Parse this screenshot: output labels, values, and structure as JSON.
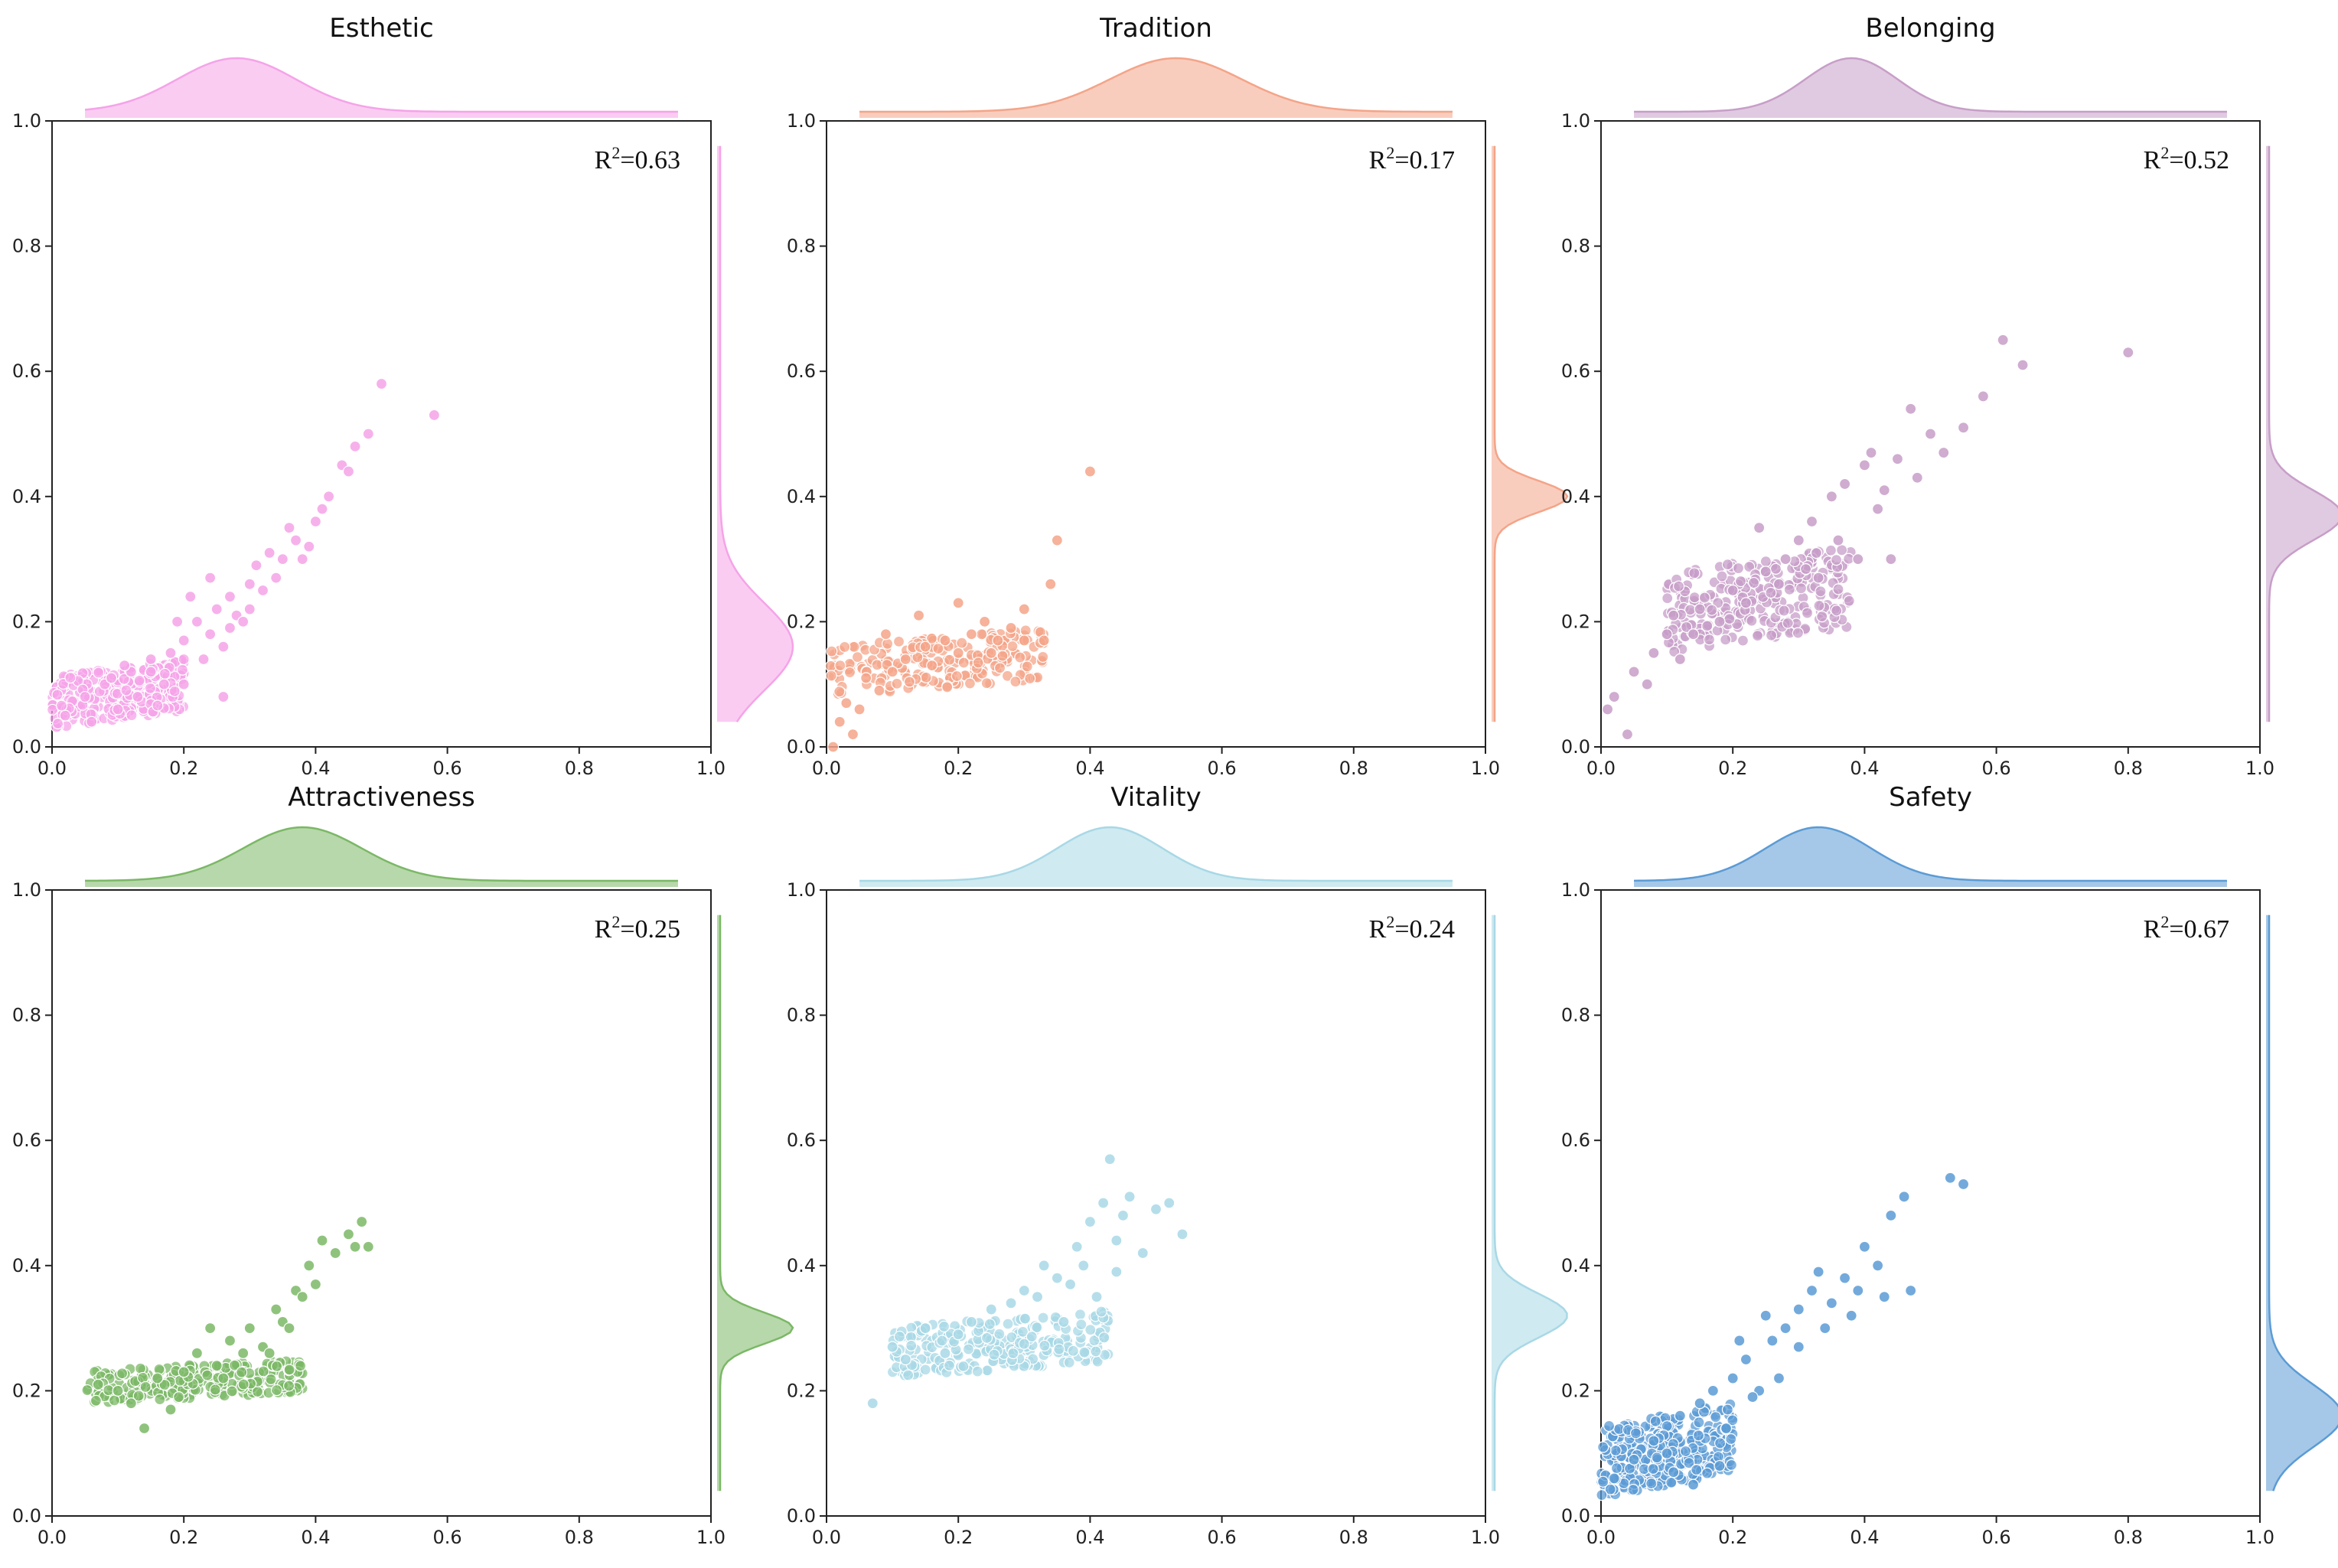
{
  "chart_data": [
    {
      "type": "scatter",
      "title": "Esthetic",
      "color": "#f5a3e8",
      "r2_label": "R²=0.63",
      "r2_base": "R",
      "r2_sup": "2",
      "r2_value": "=0.63",
      "xlim": [
        0,
        1
      ],
      "ylim": [
        0,
        1
      ],
      "xticks": [
        "0.0",
        "0.2",
        "0.4",
        "0.6",
        "0.8",
        "1.0"
      ],
      "yticks": [
        "0.0",
        "0.2",
        "0.4",
        "0.6",
        "0.8",
        "1.0"
      ],
      "x_density": {
        "peak": 0.28,
        "spread": 0.09
      },
      "y_density": {
        "peak": 0.16,
        "spread": 0.07
      },
      "cluster": {
        "x_range": [
          0.0,
          0.2
        ],
        "y_range": [
          0.03,
          0.14
        ],
        "count": 300
      },
      "points": [
        [
          0.02,
          0.05
        ],
        [
          0.05,
          0.08
        ],
        [
          0.08,
          0.1
        ],
        [
          0.1,
          0.06
        ],
        [
          0.12,
          0.12
        ],
        [
          0.15,
          0.14
        ],
        [
          0.18,
          0.15
        ],
        [
          0.2,
          0.17
        ],
        [
          0.22,
          0.2
        ],
        [
          0.24,
          0.18
        ],
        [
          0.25,
          0.22
        ],
        [
          0.27,
          0.24
        ],
        [
          0.28,
          0.21
        ],
        [
          0.3,
          0.26
        ],
        [
          0.32,
          0.25
        ],
        [
          0.35,
          0.3
        ],
        [
          0.37,
          0.33
        ],
        [
          0.38,
          0.3
        ],
        [
          0.4,
          0.36
        ],
        [
          0.42,
          0.4
        ],
        [
          0.44,
          0.45
        ],
        [
          0.46,
          0.48
        ],
        [
          0.48,
          0.5
        ],
        [
          0.5,
          0.58
        ],
        [
          0.58,
          0.53
        ],
        [
          0.2,
          0.1
        ],
        [
          0.23,
          0.14
        ],
        [
          0.26,
          0.16
        ],
        [
          0.29,
          0.2
        ],
        [
          0.31,
          0.29
        ],
        [
          0.33,
          0.31
        ],
        [
          0.36,
          0.35
        ],
        [
          0.41,
          0.38
        ],
        [
          0.45,
          0.44
        ],
        [
          0.15,
          0.12
        ],
        [
          0.17,
          0.1
        ],
        [
          0.13,
          0.08
        ],
        [
          0.21,
          0.24
        ],
        [
          0.24,
          0.27
        ],
        [
          0.19,
          0.2
        ],
        [
          0.11,
          0.13
        ],
        [
          0.06,
          0.04
        ],
        [
          0.09,
          0.11
        ],
        [
          0.27,
          0.19
        ],
        [
          0.34,
          0.27
        ],
        [
          0.39,
          0.32
        ],
        [
          0.3,
          0.22
        ],
        [
          0.26,
          0.08
        ]
      ]
    },
    {
      "type": "scatter",
      "title": "Tradition",
      "color": "#f4a488",
      "r2_label": "R²=0.17",
      "r2_base": "R",
      "r2_sup": "2",
      "r2_value": "=0.17",
      "xlim": [
        0,
        1
      ],
      "ylim": [
        0,
        1
      ],
      "xticks": [
        "0.0",
        "0.2",
        "0.4",
        "0.6",
        "0.8",
        "1.0"
      ],
      "yticks": [
        "0.0",
        "0.2",
        "0.4",
        "0.6",
        "0.8",
        "1.0"
      ],
      "x_density": {
        "peak": 0.53,
        "spread": 0.1
      },
      "y_density": {
        "peak": 0.4,
        "spread": 0.025
      },
      "cluster": {
        "x_range": [
          0.0,
          0.33
        ],
        "y_range": [
          0.08,
          0.19
        ],
        "count": 220
      },
      "points": [
        [
          0.01,
          0.0
        ],
        [
          0.02,
          0.04
        ],
        [
          0.03,
          0.07
        ],
        [
          0.05,
          0.06
        ],
        [
          0.08,
          0.09
        ],
        [
          0.1,
          0.12
        ],
        [
          0.12,
          0.14
        ],
        [
          0.15,
          0.16
        ],
        [
          0.18,
          0.17
        ],
        [
          0.2,
          0.15
        ],
        [
          0.22,
          0.18
        ],
        [
          0.24,
          0.2
        ],
        [
          0.26,
          0.17
        ],
        [
          0.28,
          0.19
        ],
        [
          0.3,
          0.17
        ],
        [
          0.33,
          0.17
        ],
        [
          0.3,
          0.22
        ],
        [
          0.34,
          0.26
        ],
        [
          0.35,
          0.33
        ],
        [
          0.4,
          0.44
        ],
        [
          0.2,
          0.23
        ],
        [
          0.14,
          0.21
        ],
        [
          0.06,
          0.11
        ],
        [
          0.09,
          0.18
        ],
        [
          0.16,
          0.13
        ],
        [
          0.25,
          0.15
        ],
        [
          0.04,
          0.02
        ]
      ]
    },
    {
      "type": "scatter",
      "title": "Belonging",
      "color": "#c79ec8",
      "r2_label": "R²=0.52",
      "r2_base": "R",
      "r2_sup": "2",
      "r2_value": "=0.52",
      "xlim": [
        0,
        1
      ],
      "ylim": [
        0,
        1
      ],
      "xticks": [
        "0.0",
        "0.2",
        "0.4",
        "0.6",
        "0.8",
        "1.0"
      ],
      "yticks": [
        "0.0",
        "0.2",
        "0.4",
        "0.6",
        "0.8",
        "1.0"
      ],
      "x_density": {
        "peak": 0.38,
        "spread": 0.07
      },
      "y_density": {
        "peak": 0.37,
        "spread": 0.04
      },
      "cluster": {
        "x_range": [
          0.1,
          0.38
        ],
        "y_range": [
          0.15,
          0.32
        ],
        "count": 280
      },
      "points": [
        [
          0.01,
          0.06
        ],
        [
          0.02,
          0.08
        ],
        [
          0.04,
          0.02
        ],
        [
          0.05,
          0.12
        ],
        [
          0.07,
          0.1
        ],
        [
          0.08,
          0.15
        ],
        [
          0.1,
          0.18
        ],
        [
          0.12,
          0.14
        ],
        [
          0.15,
          0.22
        ],
        [
          0.18,
          0.2
        ],
        [
          0.2,
          0.25
        ],
        [
          0.22,
          0.23
        ],
        [
          0.25,
          0.28
        ],
        [
          0.28,
          0.3
        ],
        [
          0.3,
          0.33
        ],
        [
          0.32,
          0.36
        ],
        [
          0.35,
          0.4
        ],
        [
          0.37,
          0.42
        ],
        [
          0.4,
          0.45
        ],
        [
          0.42,
          0.38
        ],
        [
          0.45,
          0.46
        ],
        [
          0.47,
          0.54
        ],
        [
          0.5,
          0.5
        ],
        [
          0.52,
          0.47
        ],
        [
          0.55,
          0.51
        ],
        [
          0.58,
          0.56
        ],
        [
          0.61,
          0.65
        ],
        [
          0.64,
          0.61
        ],
        [
          0.8,
          0.63
        ],
        [
          0.36,
          0.33
        ],
        [
          0.39,
          0.3
        ],
        [
          0.33,
          0.27
        ],
        [
          0.27,
          0.26
        ],
        [
          0.43,
          0.41
        ],
        [
          0.44,
          0.3
        ],
        [
          0.11,
          0.21
        ],
        [
          0.14,
          0.18
        ],
        [
          0.24,
          0.35
        ],
        [
          0.41,
          0.47
        ],
        [
          0.48,
          0.43
        ]
      ]
    },
    {
      "type": "scatter",
      "title": "Attractiveness",
      "color": "#7bb866",
      "r2_label": "R²=0.25",
      "r2_base": "R",
      "r2_sup": "2",
      "r2_value": "=0.25",
      "xlim": [
        0,
        1
      ],
      "ylim": [
        0,
        1
      ],
      "xticks": [
        "0.0",
        "0.2",
        "0.4",
        "0.6",
        "0.8",
        "1.0"
      ],
      "yticks": [
        "0.0",
        "0.2",
        "0.4",
        "0.6",
        "0.8",
        "1.0"
      ],
      "x_density": {
        "peak": 0.38,
        "spread": 0.09
      },
      "y_density": {
        "peak": 0.3,
        "spread": 0.025
      },
      "cluster": {
        "x_range": [
          0.05,
          0.38
        ],
        "y_range": [
          0.18,
          0.25
        ],
        "count": 260
      },
      "points": [
        [
          0.07,
          0.21
        ],
        [
          0.1,
          0.2
        ],
        [
          0.14,
          0.14
        ],
        [
          0.18,
          0.17
        ],
        [
          0.2,
          0.23
        ],
        [
          0.22,
          0.26
        ],
        [
          0.25,
          0.24
        ],
        [
          0.27,
          0.28
        ],
        [
          0.3,
          0.3
        ],
        [
          0.32,
          0.27
        ],
        [
          0.34,
          0.33
        ],
        [
          0.35,
          0.31
        ],
        [
          0.37,
          0.36
        ],
        [
          0.39,
          0.4
        ],
        [
          0.41,
          0.44
        ],
        [
          0.43,
          0.42
        ],
        [
          0.45,
          0.45
        ],
        [
          0.46,
          0.43
        ],
        [
          0.47,
          0.47
        ],
        [
          0.48,
          0.43
        ],
        [
          0.38,
          0.35
        ],
        [
          0.36,
          0.3
        ],
        [
          0.33,
          0.26
        ],
        [
          0.29,
          0.26
        ],
        [
          0.24,
          0.3
        ],
        [
          0.4,
          0.37
        ],
        [
          0.26,
          0.22
        ],
        [
          0.16,
          0.22
        ],
        [
          0.12,
          0.18
        ]
      ]
    },
    {
      "type": "scatter",
      "title": "Vitality",
      "color": "#a8d8e6",
      "r2_label": "R²=0.24",
      "r2_base": "R",
      "r2_sup": "2",
      "r2_value": "=0.24",
      "xlim": [
        0,
        1
      ],
      "ylim": [
        0,
        1
      ],
      "xticks": [
        "0.0",
        "0.2",
        "0.4",
        "0.6",
        "0.8",
        "1.0"
      ],
      "yticks": [
        "0.0",
        "0.2",
        "0.4",
        "0.6",
        "0.8",
        "1.0"
      ],
      "x_density": {
        "peak": 0.43,
        "spread": 0.08
      },
      "y_density": {
        "peak": 0.32,
        "spread": 0.035
      },
      "cluster": {
        "x_range": [
          0.1,
          0.43
        ],
        "y_range": [
          0.22,
          0.33
        ],
        "count": 260
      },
      "points": [
        [
          0.07,
          0.18
        ],
        [
          0.1,
          0.27
        ],
        [
          0.12,
          0.25
        ],
        [
          0.15,
          0.3
        ],
        [
          0.18,
          0.26
        ],
        [
          0.2,
          0.29
        ],
        [
          0.22,
          0.31
        ],
        [
          0.25,
          0.33
        ],
        [
          0.28,
          0.34
        ],
        [
          0.3,
          0.36
        ],
        [
          0.32,
          0.35
        ],
        [
          0.35,
          0.38
        ],
        [
          0.37,
          0.37
        ],
        [
          0.39,
          0.4
        ],
        [
          0.4,
          0.47
        ],
        [
          0.42,
          0.5
        ],
        [
          0.43,
          0.57
        ],
        [
          0.44,
          0.44
        ],
        [
          0.45,
          0.48
        ],
        [
          0.46,
          0.51
        ],
        [
          0.48,
          0.42
        ],
        [
          0.5,
          0.49
        ],
        [
          0.52,
          0.5
        ],
        [
          0.54,
          0.45
        ],
        [
          0.41,
          0.35
        ],
        [
          0.38,
          0.43
        ],
        [
          0.33,
          0.4
        ],
        [
          0.44,
          0.39
        ],
        [
          0.36,
          0.31
        ]
      ]
    },
    {
      "type": "scatter",
      "title": "Safety",
      "color": "#5b9bd5",
      "r2_label": "R²=0.67",
      "r2_base": "R",
      "r2_sup": "2",
      "r2_value": "=0.67",
      "xlim": [
        0,
        1
      ],
      "ylim": [
        0,
        1
      ],
      "xticks": [
        "0.0",
        "0.2",
        "0.4",
        "0.6",
        "0.8",
        "1.0"
      ],
      "yticks": [
        "0.0",
        "0.2",
        "0.4",
        "0.6",
        "0.8",
        "1.0"
      ],
      "x_density": {
        "peak": 0.33,
        "spread": 0.08
      },
      "y_density": {
        "peak": 0.16,
        "spread": 0.05
      },
      "cluster": {
        "x_range": [
          0.0,
          0.2
        ],
        "y_range": [
          0.03,
          0.18
        ],
        "count": 320
      },
      "points": [
        [
          0.02,
          0.06
        ],
        [
          0.05,
          0.09
        ],
        [
          0.08,
          0.12
        ],
        [
          0.1,
          0.1
        ],
        [
          0.12,
          0.16
        ],
        [
          0.15,
          0.18
        ],
        [
          0.17,
          0.2
        ],
        [
          0.2,
          0.22
        ],
        [
          0.22,
          0.25
        ],
        [
          0.24,
          0.2
        ],
        [
          0.26,
          0.28
        ],
        [
          0.28,
          0.3
        ],
        [
          0.3,
          0.33
        ],
        [
          0.32,
          0.36
        ],
        [
          0.33,
          0.39
        ],
        [
          0.35,
          0.34
        ],
        [
          0.37,
          0.38
        ],
        [
          0.39,
          0.36
        ],
        [
          0.4,
          0.43
        ],
        [
          0.42,
          0.4
        ],
        [
          0.43,
          0.35
        ],
        [
          0.44,
          0.48
        ],
        [
          0.46,
          0.51
        ],
        [
          0.47,
          0.36
        ],
        [
          0.53,
          0.54
        ],
        [
          0.55,
          0.53
        ],
        [
          0.3,
          0.27
        ],
        [
          0.27,
          0.22
        ],
        [
          0.23,
          0.19
        ],
        [
          0.19,
          0.14
        ],
        [
          0.21,
          0.28
        ],
        [
          0.25,
          0.32
        ],
        [
          0.34,
          0.3
        ],
        [
          0.38,
          0.32
        ],
        [
          0.18,
          0.08
        ],
        [
          0.14,
          0.05
        ],
        [
          0.11,
          0.07
        ]
      ]
    }
  ]
}
